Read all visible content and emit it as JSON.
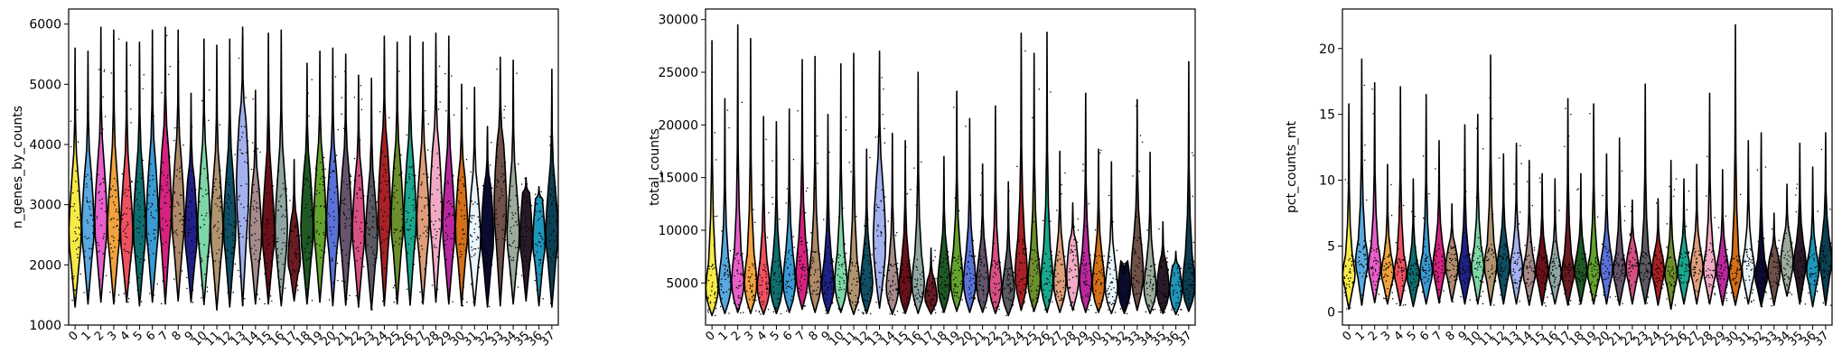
{
  "chart_data": [
    {
      "type": "violin",
      "ylabel": "n_genes_by_counts",
      "ylim": [
        1000,
        6250
      ],
      "yticks": [
        1000,
        2000,
        3000,
        4000,
        5000,
        6000
      ],
      "categories": [
        "0",
        "1",
        "2",
        "3",
        "4",
        "5",
        "6",
        "7",
        "8",
        "9",
        "10",
        "11",
        "12",
        "13",
        "14",
        "15",
        "16",
        "17",
        "18",
        "19",
        "20",
        "21",
        "22",
        "23",
        "24",
        "25",
        "26",
        "27",
        "28",
        "29",
        "30",
        "31",
        "32",
        "33",
        "34",
        "35",
        "36",
        "37"
      ],
      "min": [
        1300,
        1350,
        1380,
        1350,
        1380,
        1320,
        1380,
        1350,
        1400,
        1380,
        1340,
        1250,
        1300,
        1320,
        1350,
        1350,
        1320,
        1400,
        1350,
        1380,
        1320,
        1330,
        1300,
        1250,
        1320,
        1350,
        1330,
        1350,
        1380,
        1350,
        1320,
        1320,
        1300,
        1320,
        1350,
        1400,
        1320,
        1300
      ],
      "q1": [
        2000,
        2100,
        2150,
        2100,
        2050,
        2050,
        2150,
        2300,
        2200,
        2050,
        2100,
        2050,
        2100,
        2450,
        2050,
        2050,
        2000,
        1850,
        2050,
        2150,
        2200,
        2150,
        2050,
        2000,
        2300,
        2200,
        2200,
        2150,
        2300,
        2100,
        2100,
        2000,
        2000,
        2300,
        2050,
        2050,
        2000,
        2050
      ],
      "median": [
        2600,
        2700,
        2800,
        2700,
        2600,
        2700,
        2800,
        3000,
        2850,
        2600,
        2750,
        2650,
        2700,
        3400,
        2550,
        2600,
        2650,
        2100,
        2650,
        2800,
        2800,
        2750,
        2650,
        2500,
        3000,
        2800,
        2850,
        2800,
        3000,
        2700,
        2650,
        2500,
        2550,
        3100,
        2550,
        2500,
        2450,
        2600
      ],
      "q3": [
        3400,
        3500,
        3650,
        3500,
        3400,
        3500,
        3650,
        3900,
        3700,
        3400,
        3600,
        3450,
        3500,
        4400,
        3300,
        3400,
        3500,
        2700,
        3500,
        3650,
        3600,
        3550,
        3450,
        3200,
        3900,
        3650,
        3700,
        3600,
        3900,
        3500,
        3450,
        3200,
        3300,
        4000,
        3300,
        3200,
        3100,
        3300
      ],
      "max": [
        5600,
        5550,
        5950,
        5900,
        5700,
        5700,
        5900,
        5950,
        5900,
        4850,
        5750,
        5650,
        5750,
        5950,
        4900,
        5850,
        5900,
        3750,
        5350,
        5550,
        5600,
        5500,
        5150,
        5100,
        5800,
        5700,
        5800,
        5700,
        5850,
        5800,
        5000,
        4950,
        4300,
        5450,
        5400,
        3450,
        3300,
        5250
      ],
      "colors": [
        "#f7ea46",
        "#59a9e0",
        "#e75fc9",
        "#f0a23e",
        "#ee5160",
        "#0e6e6f",
        "#3a9ad3",
        "#d4237e",
        "#ae8a6b",
        "#202186",
        "#7dd7a6",
        "#b09470",
        "#0f4f63",
        "#a3b1ee",
        "#a78a8a",
        "#6a1019",
        "#8ea5a1",
        "#6a1c22",
        "#1e5924",
        "#64a22e",
        "#5a72d8",
        "#64546c",
        "#d84f86",
        "#5b5961",
        "#a82125",
        "#6c8f2c",
        "#1aa78e",
        "#de9e7b",
        "#f1abc4",
        "#b9289d",
        "#d26f18",
        "#e9f4fb",
        "#0b0b32",
        "#6f5149",
        "#9cab9b",
        "#2a1a27",
        "#1e95b9",
        "#0c3f53"
      ]
    },
    {
      "type": "violin",
      "ylabel": "total_counts",
      "ylim": [
        1000,
        31000
      ],
      "yticks": [
        5000,
        10000,
        15000,
        20000,
        25000,
        30000
      ],
      "categories": [
        "0",
        "1",
        "2",
        "3",
        "4",
        "5",
        "6",
        "7",
        "8",
        "9",
        "10",
        "11",
        "12",
        "13",
        "14",
        "15",
        "16",
        "17",
        "18",
        "19",
        "20",
        "21",
        "22",
        "23",
        "24",
        "25",
        "26",
        "27",
        "28",
        "29",
        "30",
        "31",
        "32",
        "33",
        "34",
        "35",
        "36",
        "37"
      ],
      "min": [
        1900,
        2100,
        2200,
        2100,
        2000,
        2100,
        2200,
        2500,
        2200,
        2100,
        2200,
        2000,
        2100,
        2600,
        2000,
        2100,
        2100,
        2050,
        2200,
        2300,
        2200,
        2200,
        2100,
        1900,
        2400,
        2300,
        2200,
        2200,
        2400,
        2200,
        2200,
        2100,
        2100,
        2400,
        2100,
        2100,
        2000,
        2300
      ],
      "q1": [
        3000,
        3200,
        3400,
        3300,
        3100,
        3200,
        3400,
        3900,
        3500,
        3200,
        3400,
        3100,
        3300,
        5500,
        3100,
        3200,
        3300,
        2800,
        3400,
        3500,
        3400,
        3300,
        3200,
        2900,
        3900,
        3500,
        3500,
        3400,
        3800,
        3400,
        3300,
        3100,
        3100,
        3900,
        3100,
        3000,
        2900,
        3300
      ],
      "median": [
        4600,
        5000,
        5300,
        5200,
        4800,
        5000,
        5300,
        6100,
        5400,
        4900,
        5300,
        4800,
        5100,
        9500,
        4700,
        4900,
        5100,
        3700,
        5200,
        5400,
        5300,
        5100,
        4900,
        4400,
        6100,
        5400,
        5500,
        5200,
        5900,
        5300,
        5100,
        4700,
        4700,
        6200,
        4700,
        4600,
        4400,
        5100
      ],
      "q3": [
        7000,
        7500,
        8000,
        7800,
        7200,
        7500,
        8000,
        9200,
        8200,
        7400,
        8000,
        7200,
        7700,
        14500,
        7100,
        7400,
        7700,
        5300,
        7800,
        8200,
        8000,
        7700,
        7400,
        6600,
        9200,
        8200,
        8300,
        7900,
        8900,
        8000,
        7700,
        7100,
        7100,
        9400,
        7100,
        6900,
        6600,
        7700
      ],
      "max": [
        28000,
        22500,
        29500,
        28200,
        20800,
        20300,
        21500,
        26200,
        26500,
        21000,
        25800,
        26800,
        17700,
        27000,
        19200,
        18500,
        25000,
        8300,
        17000,
        23200,
        20600,
        16300,
        21800,
        14600,
        28700,
        26800,
        28800,
        17500,
        12600,
        23000,
        17700,
        16500,
        5800,
        22400,
        17400,
        10800,
        8000,
        26000
      ],
      "colors": [
        "#f7ea46",
        "#59a9e0",
        "#e75fc9",
        "#f0a23e",
        "#ee5160",
        "#0e6e6f",
        "#3a9ad3",
        "#d4237e",
        "#ae8a6b",
        "#202186",
        "#7dd7a6",
        "#b09470",
        "#0f4f63",
        "#a3b1ee",
        "#a78a8a",
        "#6a1019",
        "#8ea5a1",
        "#6a1c22",
        "#1e5924",
        "#64a22e",
        "#5a72d8",
        "#64546c",
        "#d84f86",
        "#5b5961",
        "#a82125",
        "#6c8f2c",
        "#1aa78e",
        "#de9e7b",
        "#f1abc4",
        "#b9289d",
        "#d26f18",
        "#e9f4fb",
        "#0b0b32",
        "#6f5149",
        "#9cab9b",
        "#2a1a27",
        "#1e95b9",
        "#0c3f53"
      ]
    },
    {
      "type": "violin",
      "ylabel": "pct_counts_mt",
      "ylim": [
        -1,
        23
      ],
      "yticks": [
        0,
        5,
        10,
        15,
        20
      ],
      "categories": [
        "0",
        "1",
        "2",
        "3",
        "4",
        "5",
        "6",
        "7",
        "8",
        "9",
        "10",
        "11",
        "12",
        "13",
        "14",
        "15",
        "16",
        "17",
        "18",
        "19",
        "20",
        "21",
        "22",
        "23",
        "24",
        "25",
        "26",
        "27",
        "28",
        "29",
        "30",
        "31",
        "32",
        "33",
        "34",
        "35",
        "36",
        "37"
      ],
      "min": [
        0.2,
        0.5,
        0.7,
        0.6,
        0.5,
        0.4,
        0.6,
        0.7,
        0.8,
        0.6,
        0.6,
        0.5,
        0.6,
        0.6,
        0.5,
        0.5,
        0.6,
        0.5,
        0.6,
        0.6,
        0.6,
        0.5,
        0.6,
        0.6,
        0.5,
        0.2,
        0.6,
        0.6,
        0.6,
        0.5,
        0.5,
        0.6,
        0.4,
        0.5,
        1.2,
        0.6,
        0.4,
        0.5
      ],
      "q1": [
        1.8,
        2.6,
        2.3,
        2.0,
        2.0,
        1.8,
        2.0,
        2.3,
        2.3,
        2.1,
        2.3,
        2.3,
        2.3,
        2.2,
        2.0,
        2.1,
        1.9,
        1.9,
        2.1,
        2.0,
        2.2,
        2.0,
        2.2,
        2.1,
        2.1,
        1.9,
        2.1,
        2.2,
        2.1,
        2.0,
        1.9,
        2.1,
        1.8,
        2.0,
        2.5,
        2.4,
        2.1,
        2.6
      ],
      "median": [
        2.9,
        4.0,
        3.6,
        3.1,
        3.1,
        2.8,
        3.2,
        3.7,
        3.6,
        3.3,
        3.6,
        3.7,
        3.7,
        3.5,
        3.1,
        3.3,
        3.0,
        3.1,
        3.3,
        3.1,
        3.5,
        3.2,
        3.5,
        3.3,
        3.3,
        3.0,
        3.3,
        3.5,
        3.4,
        3.2,
        3.0,
        3.4,
        2.8,
        3.2,
        4.0,
        3.8,
        3.3,
        4.1
      ],
      "q3": [
        4.3,
        5.5,
        5.1,
        4.4,
        4.4,
        4.0,
        4.5,
        5.2,
        5.0,
        4.6,
        5.0,
        5.2,
        5.2,
        4.9,
        4.4,
        4.6,
        4.3,
        4.4,
        4.6,
        4.4,
        4.9,
        4.5,
        4.9,
        4.6,
        4.6,
        4.2,
        4.6,
        4.9,
        4.8,
        4.5,
        4.3,
        4.8,
        4.0,
        4.5,
        5.6,
        5.3,
        4.6,
        5.7
      ],
      "max": [
        15.8,
        19.2,
        17.4,
        11.2,
        17.1,
        10.1,
        16.5,
        13.0,
        8.2,
        14.2,
        15.0,
        19.5,
        12.0,
        12.8,
        11.5,
        10.5,
        10.1,
        16.2,
        10.5,
        15.8,
        12.0,
        13.2,
        8.5,
        17.3,
        8.6,
        11.5,
        10.1,
        11.2,
        16.6,
        10.8,
        21.8,
        13.0,
        13.6,
        7.5,
        9.7,
        12.8,
        11.0,
        13.6
      ],
      "colors": [
        "#f7ea46",
        "#59a9e0",
        "#e75fc9",
        "#f0a23e",
        "#ee5160",
        "#0e6e6f",
        "#3a9ad3",
        "#d4237e",
        "#ae8a6b",
        "#202186",
        "#7dd7a6",
        "#b09470",
        "#0f4f63",
        "#a3b1ee",
        "#a78a8a",
        "#6a1019",
        "#8ea5a1",
        "#6a1c22",
        "#1e5924",
        "#64a22e",
        "#5a72d8",
        "#64546c",
        "#d84f86",
        "#5b5961",
        "#a82125",
        "#6c8f2c",
        "#1aa78e",
        "#de9e7b",
        "#f1abc4",
        "#b9289d",
        "#d26f18",
        "#e9f4fb",
        "#0b0b32",
        "#6f5149",
        "#9cab9b",
        "#2a1a27",
        "#1e95b9",
        "#0c3f53"
      ]
    }
  ]
}
